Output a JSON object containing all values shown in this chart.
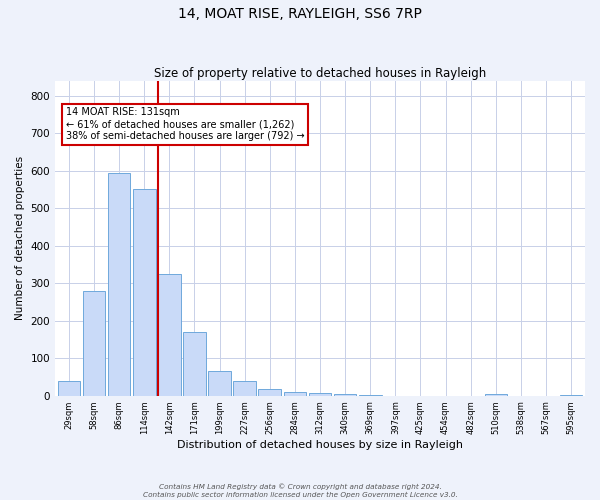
{
  "title": "14, MOAT RISE, RAYLEIGH, SS6 7RP",
  "subtitle": "Size of property relative to detached houses in Rayleigh",
  "xlabel": "Distribution of detached houses by size in Rayleigh",
  "ylabel": "Number of detached properties",
  "bar_labels": [
    "29sqm",
    "58sqm",
    "86sqm",
    "114sqm",
    "142sqm",
    "171sqm",
    "199sqm",
    "227sqm",
    "256sqm",
    "284sqm",
    "312sqm",
    "340sqm",
    "369sqm",
    "397sqm",
    "425sqm",
    "454sqm",
    "482sqm",
    "510sqm",
    "538sqm",
    "567sqm",
    "595sqm"
  ],
  "bar_values": [
    38,
    280,
    595,
    550,
    325,
    170,
    65,
    38,
    18,
    10,
    8,
    5,
    2,
    0,
    0,
    0,
    0,
    5,
    0,
    0,
    3
  ],
  "bar_color": "#c9daf8",
  "bar_edge_color": "#6fa8dc",
  "annotation_text": "14 MOAT RISE: 131sqm\n← 61% of detached houses are smaller (1,262)\n38% of semi-detached houses are larger (792) →",
  "annotation_box_color": "#ffffff",
  "annotation_box_edge_color": "#cc0000",
  "red_line_bin_index": 4,
  "ylim": [
    0,
    840
  ],
  "yticks": [
    0,
    100,
    200,
    300,
    400,
    500,
    600,
    700,
    800
  ],
  "footer_text": "Contains HM Land Registry data © Crown copyright and database right 2024.\nContains public sector information licensed under the Open Government Licence v3.0.",
  "background_color": "#eef2fb",
  "plot_background_color": "#ffffff",
  "grid_color": "#c8d0e8"
}
